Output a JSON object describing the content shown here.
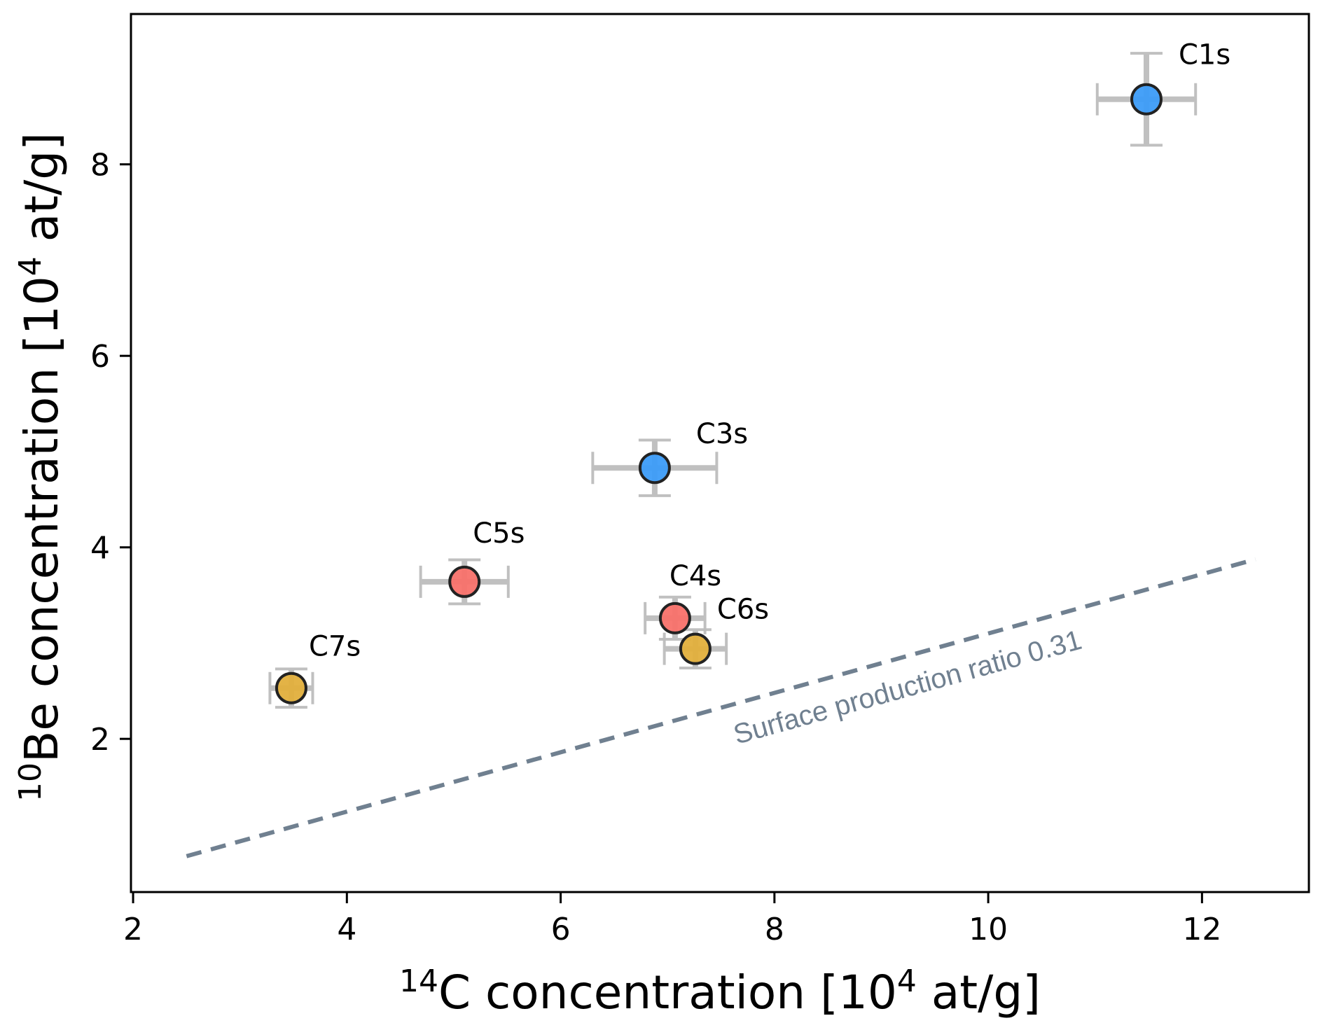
{
  "chart_data": {
    "type": "scatter",
    "title": "",
    "xlabel": {
      "sup": "14",
      "text": "C concentration [10",
      "sup2": "4",
      "text2": " at/g]"
    },
    "ylabel": {
      "sup": "10",
      "text": "Be concentration [10",
      "sup2": "4",
      "text2": " at/g]"
    },
    "xlim": [
      1.98,
      13.0
    ],
    "ylim": [
      0.4,
      9.57
    ],
    "xticks": [
      2,
      4,
      6,
      8,
      10,
      12
    ],
    "yticks": [
      2,
      4,
      6,
      8
    ],
    "xtick_labels": [
      "2",
      "4",
      "6",
      "8",
      "10",
      "12"
    ],
    "ytick_labels": [
      "2",
      "4",
      "6",
      "8"
    ],
    "grid": false,
    "points": [
      {
        "label": "C1s",
        "x": 11.48,
        "y": 8.68,
        "xerr": 0.46,
        "yerr": 0.48,
        "color": "#3c9cf8"
      },
      {
        "label": "C3s",
        "x": 6.88,
        "y": 4.83,
        "xerr": 0.58,
        "yerr": 0.29,
        "color": "#3c9cf8"
      },
      {
        "label": "C5s",
        "x": 5.1,
        "y": 3.64,
        "xerr": 0.41,
        "yerr": 0.23,
        "color": "#f8716a"
      },
      {
        "label": "C4s",
        "x": 7.07,
        "y": 3.26,
        "xerr": 0.28,
        "yerr": 0.22,
        "color": "#f8716a"
      },
      {
        "label": "C6s",
        "x": 7.26,
        "y": 2.94,
        "xerr": 0.29,
        "yerr": 0.2,
        "color": "#e2af3c"
      },
      {
        "label": "C7s",
        "x": 3.48,
        "y": 2.53,
        "xerr": 0.2,
        "yerr": 0.2,
        "color": "#e2af3c"
      }
    ],
    "reference_line": {
      "label": "Surface production ratio 0.31",
      "slope": 0.31,
      "x_range": [
        2.5,
        12.5
      ],
      "style": "dashed",
      "color": "#708090"
    },
    "errorbar_color": "#bdbdbd",
    "marker_edge_color": "#222222"
  }
}
